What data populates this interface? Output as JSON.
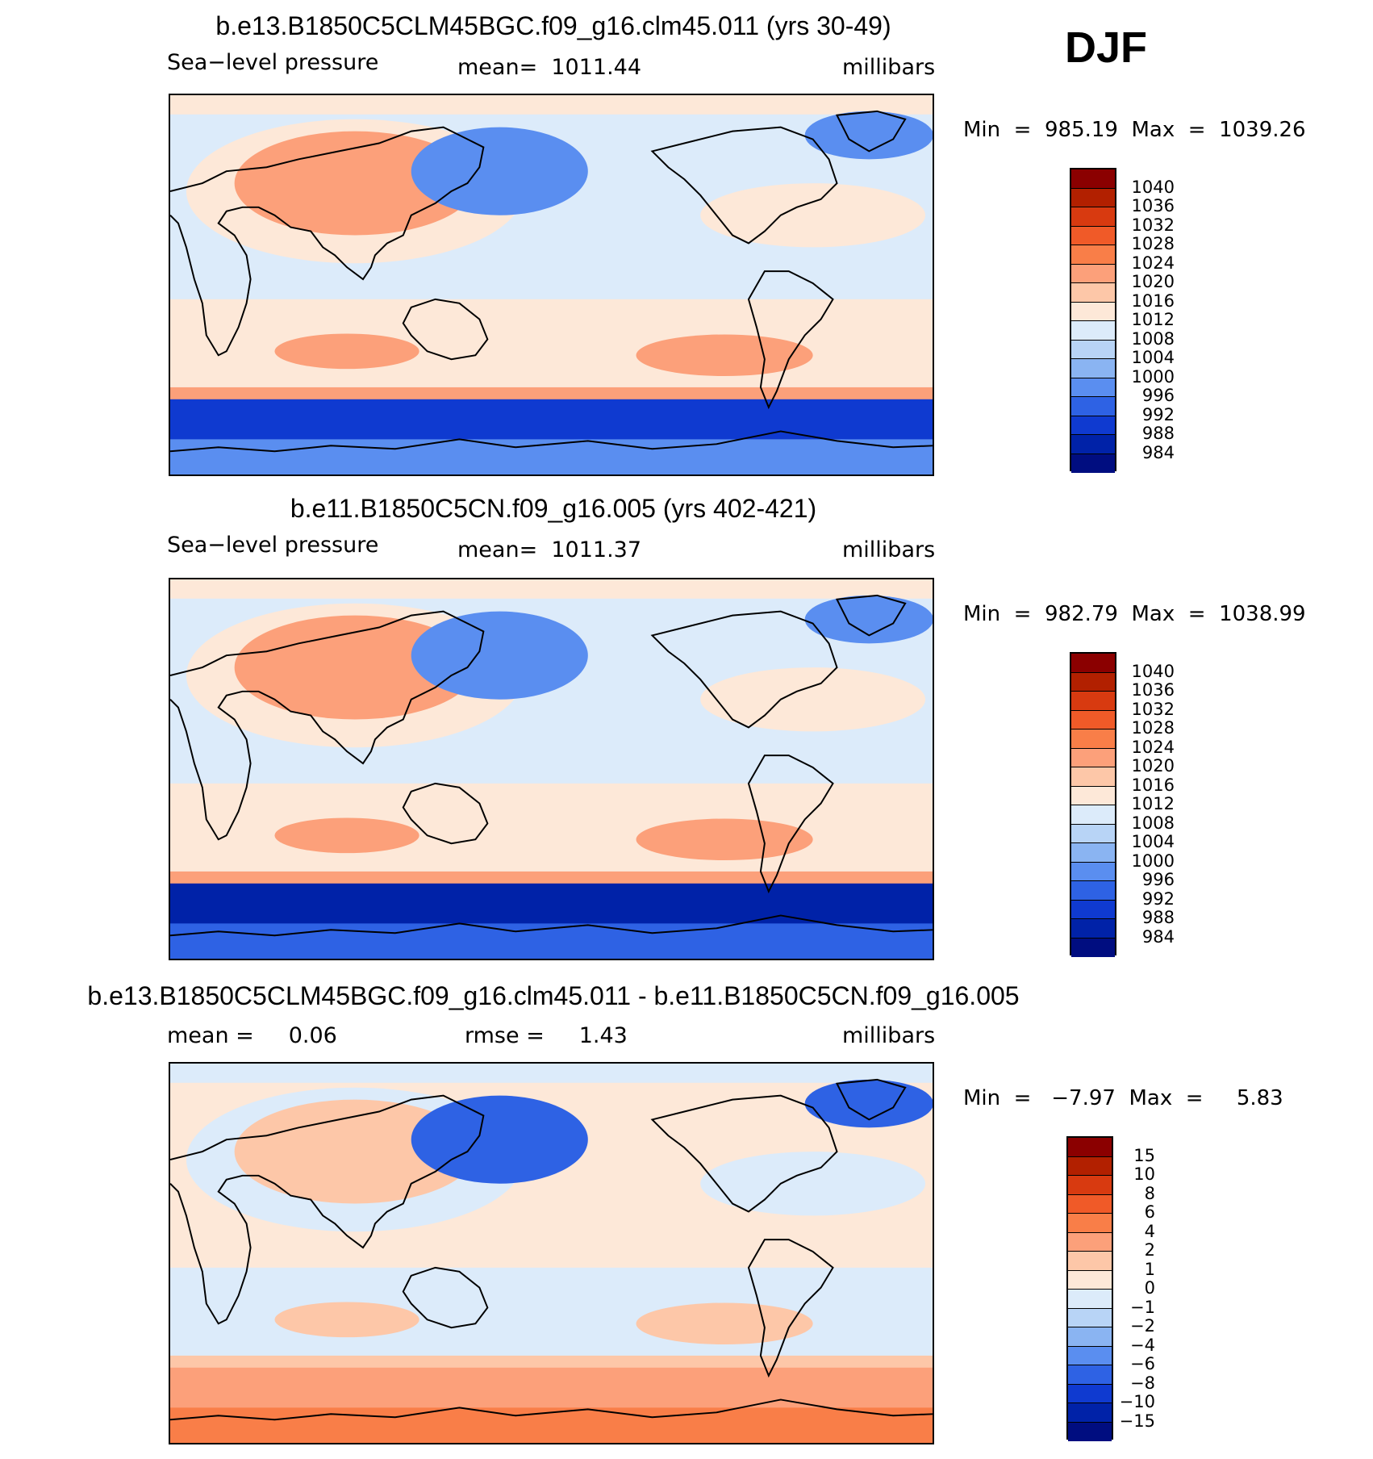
{
  "season": "DJF",
  "panels": [
    {
      "title": "b.e13.B1850C5CLM45BGC.f09_g16.clm45.011 (yrs 30-49)",
      "left_label": "Sea−level pressure",
      "center_label": "mean=  1011.44",
      "units": "millibars",
      "minmax": "Min  =  985.19  Max  =  1039.26",
      "colorbar": {
        "labels": [
          "1040",
          "1036",
          "1032",
          "1028",
          "1024",
          "1020",
          "1016",
          "1012",
          "1008",
          "1004",
          "1000",
          "996",
          "992",
          "988",
          "984"
        ],
        "colors": [
          "#8b0000",
          "#b22000",
          "#d83a10",
          "#f05a28",
          "#f97e48",
          "#fca07a",
          "#fdc7a8",
          "#fde8d8",
          "#dcebfa",
          "#b8d4f6",
          "#8ab4f2",
          "#5a8ef0",
          "#2e62e4",
          "#0f3ad0",
          "#0022a8",
          "#000d80"
        ]
      },
      "map_colors": {
        "ocean": "#dcebfa",
        "south_band": "#0f3ad0",
        "antarctic": "#5a8ef0",
        "subtrop": "#fde8d8",
        "high": "#fca07a",
        "low": "#5a8ef0"
      }
    },
    {
      "title": "b.e11.B1850C5CN.f09_g16.005 (yrs 402-421)",
      "left_label": "Sea−level pressure",
      "center_label": "mean=  1011.37",
      "units": "millibars",
      "minmax": "Min  =  982.79  Max  =  1038.99",
      "colorbar": {
        "labels": [
          "1040",
          "1036",
          "1032",
          "1028",
          "1024",
          "1020",
          "1016",
          "1012",
          "1008",
          "1004",
          "1000",
          "996",
          "992",
          "988",
          "984"
        ],
        "colors": [
          "#8b0000",
          "#b22000",
          "#d83a10",
          "#f05a28",
          "#f97e48",
          "#fca07a",
          "#fdc7a8",
          "#fde8d8",
          "#dcebfa",
          "#b8d4f6",
          "#8ab4f2",
          "#5a8ef0",
          "#2e62e4",
          "#0f3ad0",
          "#0022a8",
          "#000d80"
        ]
      },
      "map_colors": {
        "ocean": "#dcebfa",
        "south_band": "#0022a8",
        "antarctic": "#2e62e4",
        "subtrop": "#fde8d8",
        "high": "#fca07a",
        "low": "#5a8ef0"
      }
    },
    {
      "title": "b.e13.B1850C5CLM45BGC.f09_g16.clm45.011 - b.e11.B1850C5CN.f09_g16.005",
      "left_label": "mean =     0.06",
      "center_label": "rmse =     1.43",
      "units": "millibars",
      "minmax": "Min  =   −7.97  Max  =     5.83",
      "colorbar": {
        "labels": [
          "15",
          "10",
          "8",
          "6",
          "4",
          "2",
          "1",
          "0",
          "−1",
          "−2",
          "−4",
          "−6",
          "−8",
          "−10",
          "−15"
        ],
        "colors": [
          "#8b0000",
          "#b22000",
          "#d83a10",
          "#f05a28",
          "#f97e48",
          "#fca07a",
          "#fdc7a8",
          "#fde8d8",
          "#dcebfa",
          "#b8d4f6",
          "#8ab4f2",
          "#5a8ef0",
          "#2e62e4",
          "#0f3ad0",
          "#0022a8",
          "#000d80"
        ]
      },
      "map_colors": {
        "ocean": "#fde8d8",
        "south_band": "#fca07a",
        "antarctic": "#f97e48",
        "subtrop": "#dcebfa",
        "high": "#fdc7a8",
        "low": "#2e62e4"
      }
    }
  ]
}
